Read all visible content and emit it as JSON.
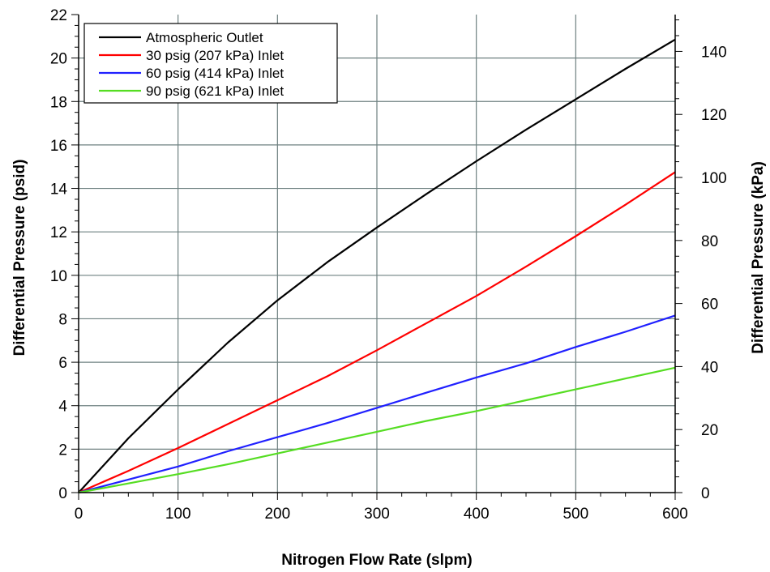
{
  "chart_data": {
    "type": "line",
    "title": "",
    "xlabel": "Nitrogen Flow Rate (slpm)",
    "ylabel": "Differential Pressure (psid)",
    "y2label": "Differential Pressure (kPa)",
    "xlim": [
      0,
      600
    ],
    "ylim": [
      0,
      22
    ],
    "y2lim": [
      0,
      151.68
    ],
    "x_ticks": [
      0,
      100,
      200,
      300,
      400,
      500,
      600
    ],
    "y_ticks": [
      0,
      2,
      4,
      6,
      8,
      10,
      12,
      14,
      16,
      18,
      20,
      22
    ],
    "y2_ticks": [
      0,
      20,
      40,
      60,
      80,
      100,
      120,
      140
    ],
    "grid": true,
    "legend_position": "top-left",
    "x": [
      0,
      50,
      100,
      150,
      200,
      250,
      300,
      350,
      400,
      450,
      500,
      550,
      600
    ],
    "series": [
      {
        "name": "Atmospheric Outlet",
        "color": "#000000",
        "values": [
          0,
          2.5,
          4.75,
          6.9,
          8.85,
          10.6,
          12.2,
          13.75,
          15.25,
          16.7,
          18.1,
          19.5,
          20.85
        ]
      },
      {
        "name": "30 psig (207 kPa) Inlet",
        "color": "#ff0000",
        "values": [
          0,
          1.0,
          2.05,
          3.15,
          4.25,
          5.35,
          6.55,
          7.8,
          9.05,
          10.4,
          11.8,
          13.25,
          14.75
        ]
      },
      {
        "name": "60 psig (414 kPa) Inlet",
        "color": "#2020ff",
        "values": [
          0,
          0.6,
          1.2,
          1.9,
          2.55,
          3.2,
          3.9,
          4.6,
          5.3,
          5.95,
          6.7,
          7.4,
          8.15
        ]
      },
      {
        "name": "90 psig (621 kPa) Inlet",
        "color": "#55dd22",
        "values": [
          0,
          0.42,
          0.85,
          1.3,
          1.8,
          2.3,
          2.8,
          3.3,
          3.75,
          4.25,
          4.75,
          5.25,
          5.75
        ]
      }
    ]
  }
}
